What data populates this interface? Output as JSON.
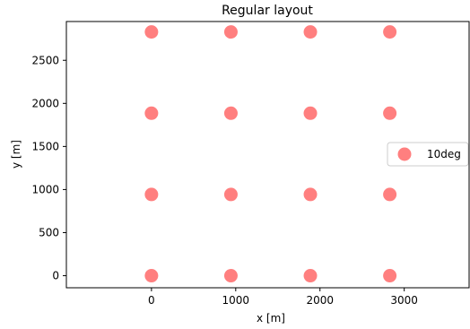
{
  "chart_data": {
    "type": "scatter",
    "title": "Regular layout",
    "xlabel": "x [m]",
    "ylabel": "y [m]",
    "xlim": [
      -1010,
      3770
    ],
    "ylim": [
      -140,
      2950
    ],
    "xticks": [
      0,
      1000,
      2000,
      3000
    ],
    "yticks": [
      0,
      500,
      1000,
      1500,
      2000,
      2500
    ],
    "grid": false,
    "legend_position": "center-right",
    "series": [
      {
        "name": "10deg",
        "color": "#ff7f7f",
        "points": [
          {
            "x": 0,
            "y": 0
          },
          {
            "x": 943,
            "y": 0
          },
          {
            "x": 1886,
            "y": 0
          },
          {
            "x": 2829,
            "y": 0
          },
          {
            "x": 0,
            "y": 943
          },
          {
            "x": 943,
            "y": 943
          },
          {
            "x": 1886,
            "y": 943
          },
          {
            "x": 2829,
            "y": 943
          },
          {
            "x": 0,
            "y": 1886
          },
          {
            "x": 943,
            "y": 1886
          },
          {
            "x": 1886,
            "y": 1886
          },
          {
            "x": 2829,
            "y": 1886
          },
          {
            "x": 0,
            "y": 2829
          },
          {
            "x": 943,
            "y": 2829
          },
          {
            "x": 1886,
            "y": 2829
          },
          {
            "x": 2829,
            "y": 2829
          }
        ]
      }
    ]
  }
}
